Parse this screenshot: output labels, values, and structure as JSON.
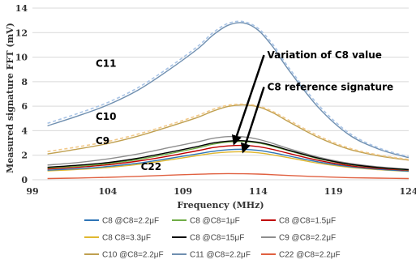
{
  "chart_data": {
    "type": "line",
    "xlabel": "Frequency (MHz)",
    "ylabel": "Measured signature FFT (mV)",
    "xlim": [
      99,
      124
    ],
    "ylim": [
      0,
      14
    ],
    "xticks": [
      99,
      104,
      109,
      114,
      119,
      124
    ],
    "yticks": [
      0,
      2,
      4,
      6,
      8,
      10,
      12,
      14
    ],
    "grid": "horizontal",
    "legend_position": "bottom",
    "x": [
      100,
      102,
      104,
      106,
      108,
      110,
      111,
      112,
      113,
      114,
      115,
      116,
      118,
      120,
      122,
      124
    ],
    "series": [
      {
        "name": "C8 @C8=2.2μF",
        "color": "#2e75b6",
        "dashed": false,
        "values": [
          0.78,
          0.9,
          1.08,
          1.35,
          1.72,
          2.12,
          2.32,
          2.45,
          2.48,
          2.4,
          2.2,
          1.95,
          1.45,
          1.08,
          0.85,
          0.7
        ]
      },
      {
        "name": "C8 @C8=1μF",
        "color": "#70ad47",
        "dashed": false,
        "values": [
          0.95,
          1.1,
          1.32,
          1.65,
          2.1,
          2.6,
          2.9,
          3.08,
          3.12,
          3.0,
          2.72,
          2.38,
          1.72,
          1.25,
          0.98,
          0.8
        ]
      },
      {
        "name": "C8 @C8=1.5μF",
        "color": "#c00000",
        "dashed": false,
        "values": [
          0.88,
          1.02,
          1.22,
          1.52,
          1.92,
          2.38,
          2.62,
          2.76,
          2.8,
          2.7,
          2.46,
          2.16,
          1.58,
          1.16,
          0.92,
          0.76
        ]
      },
      {
        "name": "C8 C8=3.3μF",
        "color": "#e0b830",
        "dashed": false,
        "values": [
          0.72,
          0.84,
          1.0,
          1.25,
          1.6,
          1.98,
          2.16,
          2.26,
          2.28,
          2.2,
          2.02,
          1.8,
          1.35,
          1.02,
          0.82,
          0.68
        ]
      },
      {
        "name": "C8 @C8=15μF",
        "color": "#000000",
        "dashed": false,
        "values": [
          1.02,
          1.18,
          1.4,
          1.75,
          2.22,
          2.72,
          3.0,
          3.15,
          3.18,
          3.06,
          2.78,
          2.42,
          1.76,
          1.28,
          1.0,
          0.82
        ]
      },
      {
        "name": "C9 @C8=2.2μF",
        "color": "#8e8e8e",
        "dashed": false,
        "values": [
          1.2,
          1.4,
          1.7,
          2.1,
          2.6,
          3.1,
          3.38,
          3.52,
          3.5,
          3.3,
          2.95,
          2.55,
          1.85,
          1.35,
          1.05,
          0.85
        ]
      },
      {
        "name": "C10 @C8=2.2μF",
        "color": "#c0a050",
        "dashed": false,
        "values": [
          2.1,
          2.5,
          2.95,
          3.55,
          4.3,
          5.1,
          5.6,
          5.98,
          6.1,
          5.95,
          5.45,
          4.75,
          3.45,
          2.5,
          1.95,
          1.6
        ]
      },
      {
        "name": "C11 @C8=2.2μF",
        "color": "#6f8fb0",
        "dashed": false,
        "values": [
          4.4,
          5.2,
          6.1,
          7.3,
          8.9,
          10.7,
          11.8,
          12.6,
          12.8,
          12.2,
          10.8,
          9.0,
          5.9,
          3.7,
          2.5,
          1.8
        ]
      },
      {
        "name": "C22 @C8=2.2μF",
        "color": "#e06040",
        "dashed": false,
        "values": [
          0.1,
          0.14,
          0.2,
          0.28,
          0.37,
          0.45,
          0.48,
          0.5,
          0.49,
          0.46,
          0.41,
          0.35,
          0.25,
          0.17,
          0.13,
          0.1
        ]
      },
      {
        "name": "",
        "color": "#a9c4e6",
        "dashed": true,
        "values": [
          4.6,
          5.4,
          6.3,
          7.5,
          9.1,
          10.9,
          12.0,
          12.75,
          12.9,
          12.35,
          11.0,
          9.2,
          6.1,
          3.85,
          2.6,
          1.88
        ]
      },
      {
        "name": "",
        "color": "#f2c98a",
        "dashed": true,
        "values": [
          2.3,
          2.68,
          3.12,
          3.72,
          4.45,
          5.25,
          5.74,
          6.08,
          6.16,
          6.02,
          5.55,
          4.88,
          3.58,
          2.6,
          2.02,
          1.66
        ]
      }
    ],
    "annotations": [
      {
        "text": "C11",
        "x": 103.2,
        "y": 9.2
      },
      {
        "text": "C10",
        "x": 103.2,
        "y": 4.9
      },
      {
        "text": "C9",
        "x": 103.2,
        "y": 2.9
      },
      {
        "text": "C22",
        "x": 106.2,
        "y": 0.8
      },
      {
        "text": "Variation of C8 value",
        "x": 114.6,
        "y": 9.9,
        "arrow_to": [
          112.4,
          2.95
        ]
      },
      {
        "text": "C8 reference signature",
        "x": 114.6,
        "y": 7.3,
        "arrow_to": [
          113.0,
          2.3
        ]
      }
    ]
  }
}
